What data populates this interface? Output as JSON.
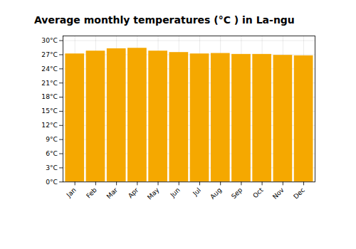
{
  "chart_data": {
    "type": "bar",
    "title": "Average monthly temperatures (°C ) in La-ngu",
    "categories": [
      "Jan",
      "Feb",
      "Mar",
      "Apr",
      "May",
      "Jun",
      "Jul",
      "Aug",
      "Sep",
      "Oct",
      "Nov",
      "Dec"
    ],
    "values": [
      27.2,
      27.8,
      28.3,
      28.4,
      27.8,
      27.5,
      27.2,
      27.3,
      27.1,
      27.1,
      26.9,
      26.8
    ],
    "color": "#F5A800",
    "ylim": [
      0,
      31
    ],
    "yticks": [
      {
        "value": 0,
        "label": "0°C"
      },
      {
        "value": 3,
        "label": "3°C"
      },
      {
        "value": 6,
        "label": "6°C"
      },
      {
        "value": 9,
        "label": "9°C"
      },
      {
        "value": 12,
        "label": "12°C"
      },
      {
        "value": 15,
        "label": "15°C"
      },
      {
        "value": 18,
        "label": "18°C"
      },
      {
        "value": 21,
        "label": "21°C"
      },
      {
        "value": 24,
        "label": "24°C"
      },
      {
        "value": 27,
        "label": "27°C"
      },
      {
        "value": 30,
        "label": "30°C"
      }
    ],
    "grid": true
  }
}
